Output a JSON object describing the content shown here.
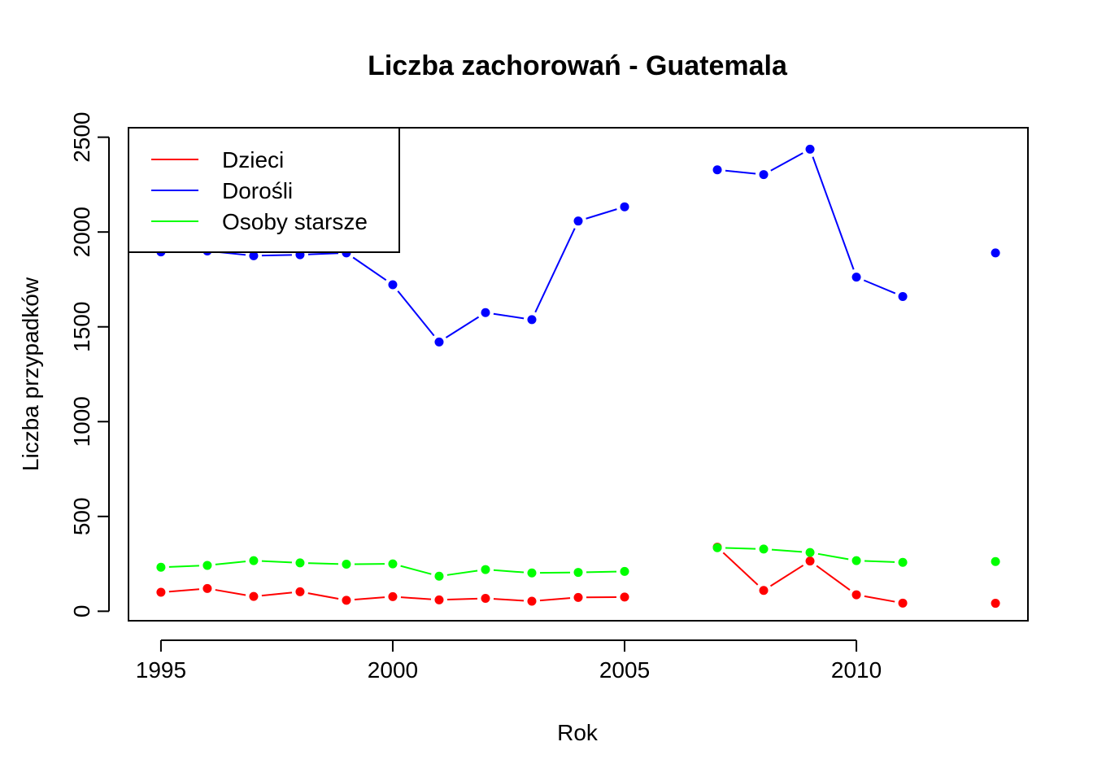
{
  "chart_data": {
    "type": "line",
    "title": "Liczba zachorowań -  Guatemala",
    "xlabel": "Rok",
    "ylabel": "Liczba przypadków",
    "xlim": [
      1994.3,
      2013.7
    ],
    "ylim": [
      -50,
      2550
    ],
    "x_ticks": [
      1995,
      2000,
      2005,
      2010
    ],
    "y_ticks": [
      0,
      500,
      1000,
      1500,
      2000,
      2500
    ],
    "x_tick_labels": [
      "1995",
      "2000",
      "2005",
      "2010"
    ],
    "y_tick_labels": [
      "0",
      "500",
      "1000",
      "1500",
      "2000",
      "2500"
    ],
    "grid": false,
    "legend_position": "top-left",
    "x": [
      1995,
      1996,
      1997,
      1998,
      1999,
      2000,
      2001,
      2002,
      2003,
      2004,
      2005,
      2006,
      2007,
      2008,
      2009,
      2010,
      2011,
      2012,
      2013
    ],
    "series": [
      {
        "name": "Dzieci",
        "color": "#ff0000",
        "values": [
          100,
          120,
          78,
          103,
          58,
          77,
          60,
          68,
          53,
          73,
          75,
          null,
          338,
          110,
          265,
          87,
          43,
          null,
          42
        ]
      },
      {
        "name": "Dorośli",
        "color": "#0000ff",
        "values": [
          1895,
          1900,
          1875,
          1880,
          1890,
          1722,
          1420,
          1575,
          1538,
          2058,
          2133,
          null,
          2328,
          2303,
          2437,
          1762,
          1660,
          null,
          1890
        ]
      },
      {
        "name": "Osoby starsze",
        "color": "#00ff00",
        "values": [
          232,
          242,
          267,
          255,
          248,
          250,
          185,
          220,
          202,
          205,
          210,
          null,
          335,
          328,
          310,
          267,
          258,
          null,
          262
        ]
      }
    ]
  }
}
